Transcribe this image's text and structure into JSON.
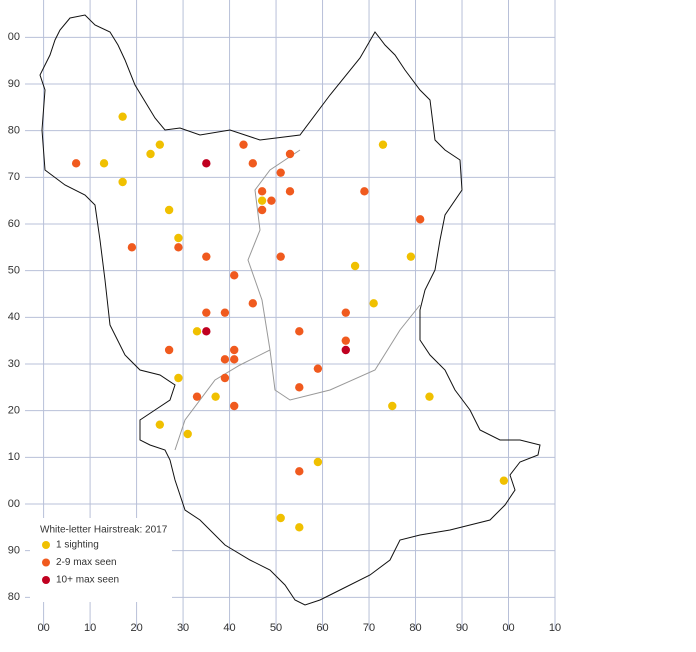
{
  "chart_data": {
    "type": "scatter",
    "legend_title": "White-letter Hairstreak:  2017",
    "xlim": [
      -4,
      110
    ],
    "ylim": [
      -27,
      108
    ],
    "xticks": [
      {
        "value": 0,
        "label": "00"
      },
      10,
      20,
      30,
      40,
      50,
      60,
      70,
      80,
      90,
      {
        "value": 100,
        "label": "00"
      },
      {
        "value": 110,
        "label": "10"
      }
    ],
    "yticks": [
      {
        "value": 100,
        "label": "00"
      },
      90,
      80,
      70,
      60,
      50,
      40,
      30,
      20,
      10,
      {
        "value": 0,
        "label": "00"
      },
      {
        "value": -10,
        "label": "90"
      },
      {
        "value": -20,
        "label": "80"
      }
    ],
    "grid": true,
    "series": [
      {
        "name": "1 sighting",
        "color": "#f0c000",
        "x": [
          17,
          13,
          25,
          23,
          17,
          27,
          29,
          47,
          73,
          67,
          79,
          71,
          33,
          29,
          37,
          25,
          31,
          75,
          83,
          59,
          99,
          51,
          55
        ],
        "y": [
          83,
          73,
          77,
          75,
          69,
          63,
          57,
          65,
          77,
          51,
          53,
          43,
          37,
          27,
          23,
          17,
          15,
          21,
          23,
          9,
          5,
          -3,
          -5
        ]
      },
      {
        "name": "2-9 max seen",
        "color": "#f05a1e",
        "x": [
          7,
          19,
          29,
          43,
          45,
          53,
          51,
          47,
          53,
          49,
          47,
          69,
          81,
          35,
          51,
          41,
          45,
          35,
          39,
          65,
          55,
          65,
          27,
          41,
          39,
          41,
          59,
          39,
          55,
          33,
          41,
          55
        ],
        "y": [
          73,
          55,
          55,
          77,
          73,
          75,
          71,
          67,
          67,
          65,
          63,
          67,
          61,
          53,
          53,
          49,
          43,
          41,
          41,
          41,
          37,
          35,
          33,
          33,
          31,
          31,
          29,
          27,
          25,
          23,
          21,
          7
        ]
      },
      {
        "name": "10+ max seen",
        "color": "#c00020",
        "x": [
          35,
          35,
          65
        ],
        "y": [
          73,
          37,
          33
        ]
      }
    ]
  }
}
